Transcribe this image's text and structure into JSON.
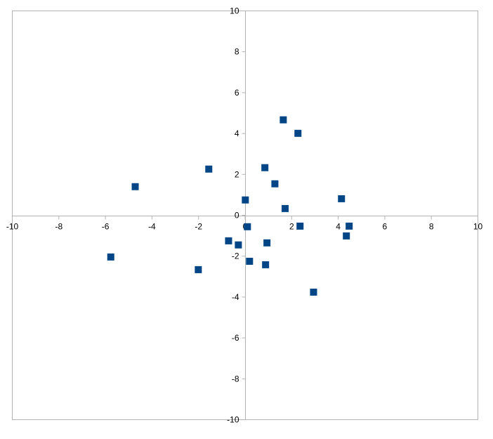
{
  "chart_data": {
    "type": "scatter",
    "title": "",
    "xlabel": "",
    "ylabel": "",
    "xlim": [
      -10,
      10
    ],
    "ylim": [
      -10,
      10
    ],
    "x_ticks": [
      -10,
      -8,
      -6,
      -4,
      -2,
      0,
      2,
      4,
      6,
      8,
      10
    ],
    "y_ticks": [
      -10,
      -8,
      -6,
      -4,
      -2,
      0,
      2,
      4,
      6,
      8,
      10
    ],
    "grid": false,
    "legend": "none",
    "marker": "square",
    "marker_color": "#004586",
    "axis_color": "#b3b3b3",
    "series": [
      {
        "x": [
          -4.72,
          -1.56,
          -5.77,
          -2.01,
          -0.71,
          -0.29,
          0.01,
          0.1,
          0.19,
          0.85,
          0.94,
          0.88,
          1.28,
          1.64,
          2.27,
          1.72,
          2.36,
          2.94,
          4.14,
          4.47,
          4.35
        ],
        "y": [
          1.4,
          2.26,
          -2.04,
          -2.66,
          -1.25,
          -1.45,
          0.75,
          -0.56,
          -2.25,
          2.33,
          -1.35,
          -2.42,
          1.54,
          4.67,
          4.01,
          0.33,
          -0.53,
          -3.76,
          0.81,
          -0.53,
          -1.01
        ]
      }
    ]
  }
}
